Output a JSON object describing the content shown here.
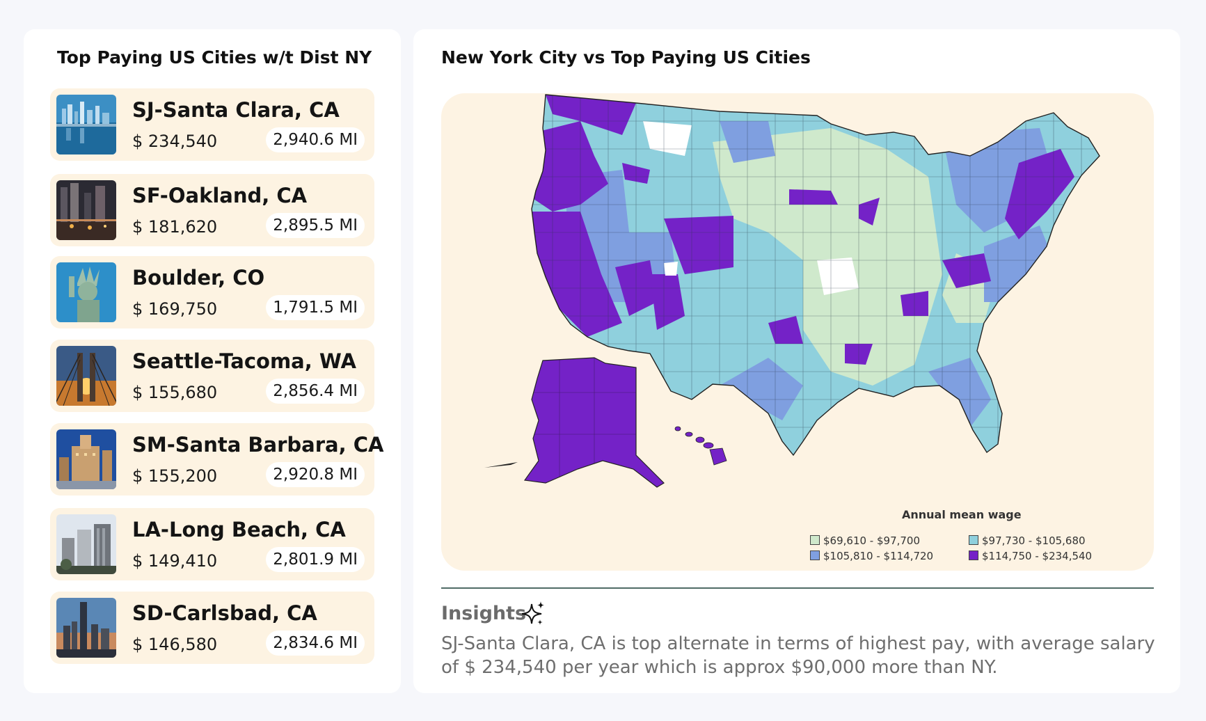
{
  "left_panel": {
    "title": "Top Paying US Cities w/t Dist NY"
  },
  "right_panel": {
    "title": "New York City vs Top Paying US Cities"
  },
  "cities": [
    {
      "name": "SJ-Santa Clara, CA",
      "wage": "$ 234,540",
      "distance": "2,940.6 MI",
      "image": "nyc-waterfront-skyline"
    },
    {
      "name": "SF-Oakland, CA",
      "wage": "$ 181,620",
      "distance": "2,895.5 MI",
      "image": "city-night-street"
    },
    {
      "name": "Boulder, CO",
      "wage": "$ 169,750",
      "distance": "1,791.5 MI",
      "image": "statue-of-liberty"
    },
    {
      "name": "Seattle-Tacoma, WA",
      "wage": "$ 155,680",
      "distance": "2,856.4 MI",
      "image": "brooklyn-bridge-sunset"
    },
    {
      "name": "SM-Santa Barbara, CA",
      "wage": "$ 155,200",
      "distance": "2,920.8 MI",
      "image": "city-hall-tower"
    },
    {
      "name": "LA-Long Beach, CA",
      "wage": "$ 149,410",
      "distance": "2,801.9 MI",
      "image": "downtown-towers"
    },
    {
      "name": "SD-Carlsbad, CA",
      "wage": "$ 146,580",
      "distance": "2,834.6 MI",
      "image": "skyline-dusk"
    }
  ],
  "map": {
    "legend_title": "Annual mean wage",
    "legend": [
      {
        "label": "$69,610 - $97,700",
        "color": "#cfe9cc"
      },
      {
        "label": "$97,730 - $105,680",
        "color": "#8fd0dd"
      },
      {
        "label": "$105,810 - $114,720",
        "color": "#7f9fe0"
      },
      {
        "label": "$114,750 - $234,540",
        "color": "#7422c7"
      }
    ]
  },
  "insights": {
    "title": "Insights",
    "icon": "sparkle-icon",
    "body": "SJ-Santa Clara, CA is top alternate in terms of highest pay, with average salary of $ 234,540 per year which is approx $90,000 more than NY."
  }
}
